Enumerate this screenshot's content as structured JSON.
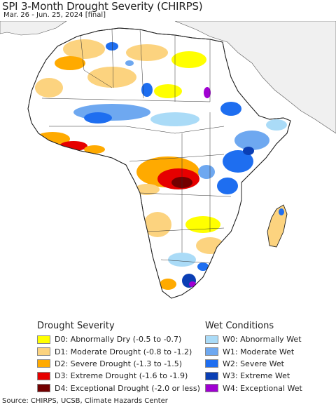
{
  "header": {
    "title": "SPI 3-Month Drought Severity (CHIRPS)",
    "subtitle": "Mar. 26 - Jun. 25, 2024 [final]"
  },
  "colors": {
    "ocean": "#ffffff",
    "land_background": "#f0f0f0",
    "africa_base": "#ffffff",
    "border": "#222222"
  },
  "legend": {
    "drought": {
      "heading": "Drought Severity",
      "items": [
        {
          "code": "D0:",
          "label": "Abnormally Dry (-0.5 to -0.7)",
          "color": "#ffff00"
        },
        {
          "code": "D1:",
          "label": "Moderate Drought (-0.8 to -1.2)",
          "color": "#fcd37f"
        },
        {
          "code": "D2:",
          "label": "Severe Drought (-1.3 to -1.5)",
          "color": "#ffaa00"
        },
        {
          "code": "D3:",
          "label": "Extreme Drought (-1.6 to -1.9)",
          "color": "#e60000"
        },
        {
          "code": "D4:",
          "label": "Exceptional Drought (-2.0 or less)",
          "color": "#730000"
        }
      ]
    },
    "wet": {
      "heading": "Wet Conditions",
      "items": [
        {
          "code": "W0:",
          "label": "Abnormally Wet",
          "color": "#aadbf7"
        },
        {
          "code": "W1:",
          "label": "Moderate Wet",
          "color": "#6ea8f0"
        },
        {
          "code": "W2:",
          "label": "Severe Wet",
          "color": "#1e6ef0"
        },
        {
          "code": "W3:",
          "label": "Extreme Wet",
          "color": "#0a3eb4"
        },
        {
          "code": "W4:",
          "label": "Exceptional Wet",
          "color": "#a000d2"
        }
      ]
    }
  },
  "footer": {
    "source": "Source: CHIRPS, UCSB, Climate Hazards Center"
  }
}
